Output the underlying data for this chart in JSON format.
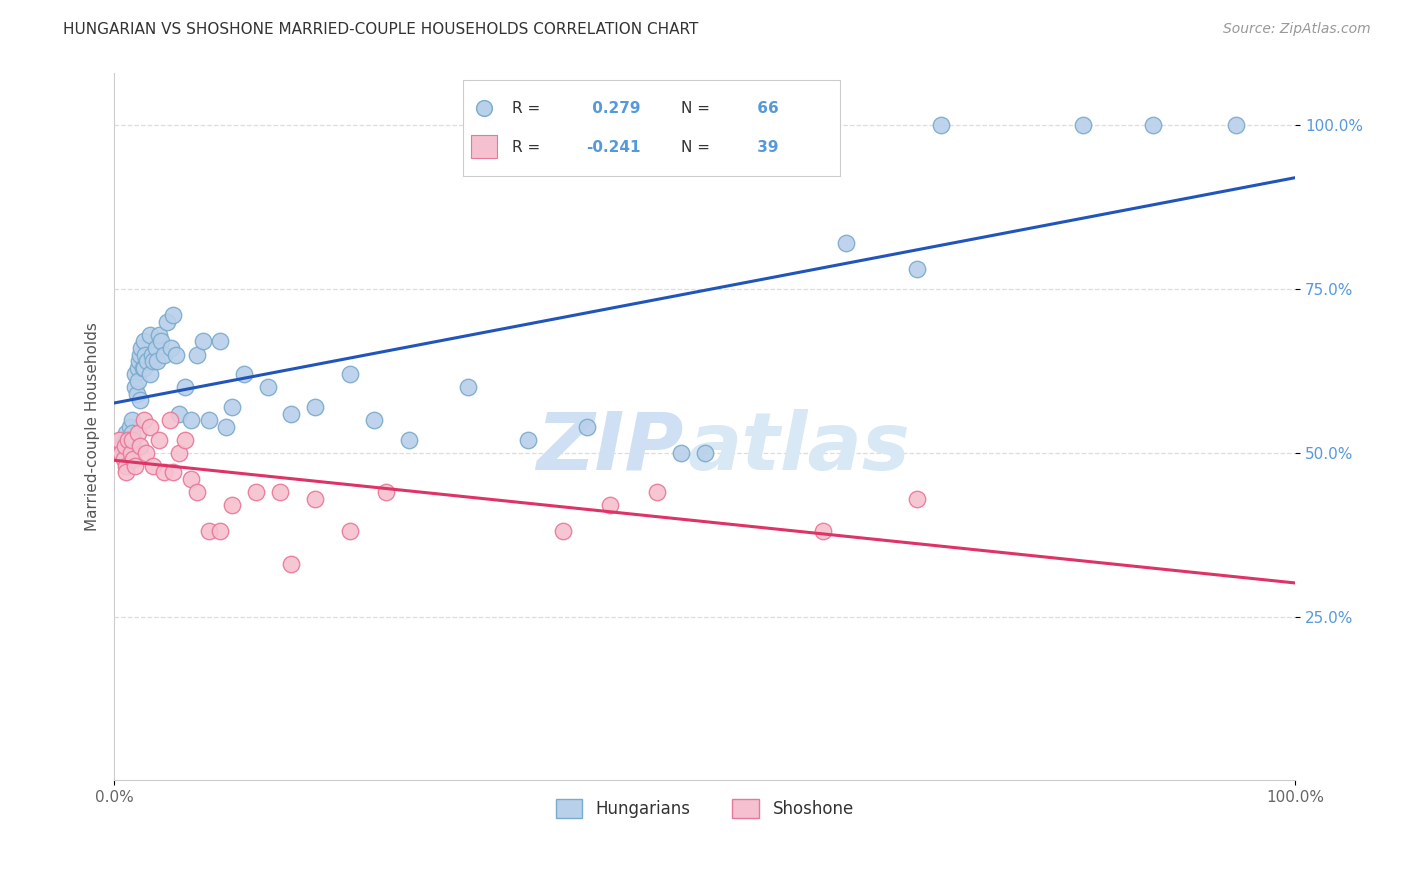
{
  "title": "HUNGARIAN VS SHOSHONE MARRIED-COUPLE HOUSEHOLDS CORRELATION CHART",
  "source": "Source: ZipAtlas.com",
  "ylabel": "Married-couple Households",
  "legend_blue_label": "Hungarians",
  "legend_pink_label": "Shoshone",
  "R_blue": 0.279,
  "N_blue": 66,
  "R_pink": -0.241,
  "N_pink": 39,
  "blue_color": "#b8d0ea",
  "blue_edge": "#7aabcc",
  "pink_color": "#f5c0cf",
  "pink_edge": "#e87898",
  "blue_line_color": "#2255bb",
  "pink_line_color": "#dd3366",
  "watermark_color": "#d0e0f4",
  "hungarian_x": [
    0.005,
    0.007,
    0.008,
    0.009,
    0.01,
    0.01,
    0.012,
    0.013,
    0.014,
    0.015,
    0.015,
    0.016,
    0.018,
    0.018,
    0.019,
    0.02,
    0.02,
    0.021,
    0.022,
    0.022,
    0.023,
    0.024,
    0.025,
    0.025,
    0.026,
    0.028,
    0.03,
    0.03,
    0.032,
    0.033,
    0.035,
    0.036,
    0.038,
    0.04,
    0.042,
    0.045,
    0.048,
    0.05,
    0.052,
    0.055,
    0.06,
    0.065,
    0.07,
    0.075,
    0.08,
    0.09,
    0.095,
    0.1,
    0.11,
    0.13,
    0.15,
    0.17,
    0.2,
    0.22,
    0.25,
    0.3,
    0.35,
    0.4,
    0.48,
    0.5,
    0.62,
    0.68,
    0.7,
    0.82,
    0.88,
    0.95
  ],
  "hungarian_y": [
    0.52,
    0.51,
    0.5,
    0.51,
    0.53,
    0.5,
    0.52,
    0.54,
    0.51,
    0.55,
    0.53,
    0.52,
    0.62,
    0.6,
    0.59,
    0.63,
    0.61,
    0.64,
    0.65,
    0.58,
    0.66,
    0.63,
    0.67,
    0.63,
    0.65,
    0.64,
    0.68,
    0.62,
    0.65,
    0.64,
    0.66,
    0.64,
    0.68,
    0.67,
    0.65,
    0.7,
    0.66,
    0.71,
    0.65,
    0.56,
    0.6,
    0.55,
    0.65,
    0.67,
    0.55,
    0.67,
    0.54,
    0.57,
    0.62,
    0.6,
    0.56,
    0.57,
    0.62,
    0.55,
    0.52,
    0.6,
    0.52,
    0.54,
    0.5,
    0.5,
    0.82,
    0.78,
    1.0,
    1.0,
    1.0,
    1.0
  ],
  "shoshone_x": [
    0.004,
    0.006,
    0.008,
    0.009,
    0.01,
    0.01,
    0.012,
    0.014,
    0.015,
    0.016,
    0.018,
    0.02,
    0.022,
    0.025,
    0.027,
    0.03,
    0.033,
    0.038,
    0.042,
    0.047,
    0.05,
    0.055,
    0.06,
    0.065,
    0.07,
    0.08,
    0.09,
    0.1,
    0.12,
    0.14,
    0.15,
    0.17,
    0.2,
    0.23,
    0.38,
    0.42,
    0.46,
    0.6,
    0.68
  ],
  "shoshone_y": [
    0.52,
    0.5,
    0.49,
    0.51,
    0.48,
    0.47,
    0.52,
    0.5,
    0.52,
    0.49,
    0.48,
    0.53,
    0.51,
    0.55,
    0.5,
    0.54,
    0.48,
    0.52,
    0.47,
    0.55,
    0.47,
    0.5,
    0.52,
    0.46,
    0.44,
    0.38,
    0.38,
    0.42,
    0.44,
    0.44,
    0.33,
    0.43,
    0.38,
    0.44,
    0.38,
    0.42,
    0.44,
    0.38,
    0.43
  ],
  "xmin": 0.0,
  "xmax": 1.0,
  "ymin": 0.0,
  "ymax": 1.08,
  "yticks": [
    0.25,
    0.5,
    0.75,
    1.0
  ],
  "ytick_labels": [
    "25.0%",
    "50.0%",
    "75.0%",
    "100.0%"
  ],
  "xtick_positions": [
    0.0,
    1.0
  ],
  "xtick_labels": [
    "0.0%",
    "100.0%"
  ],
  "background_color": "#ffffff",
  "grid_color": "#dddddd",
  "title_fontsize": 11,
  "source_fontsize": 10,
  "axis_color": "#5599dd",
  "scatter_size": 140
}
